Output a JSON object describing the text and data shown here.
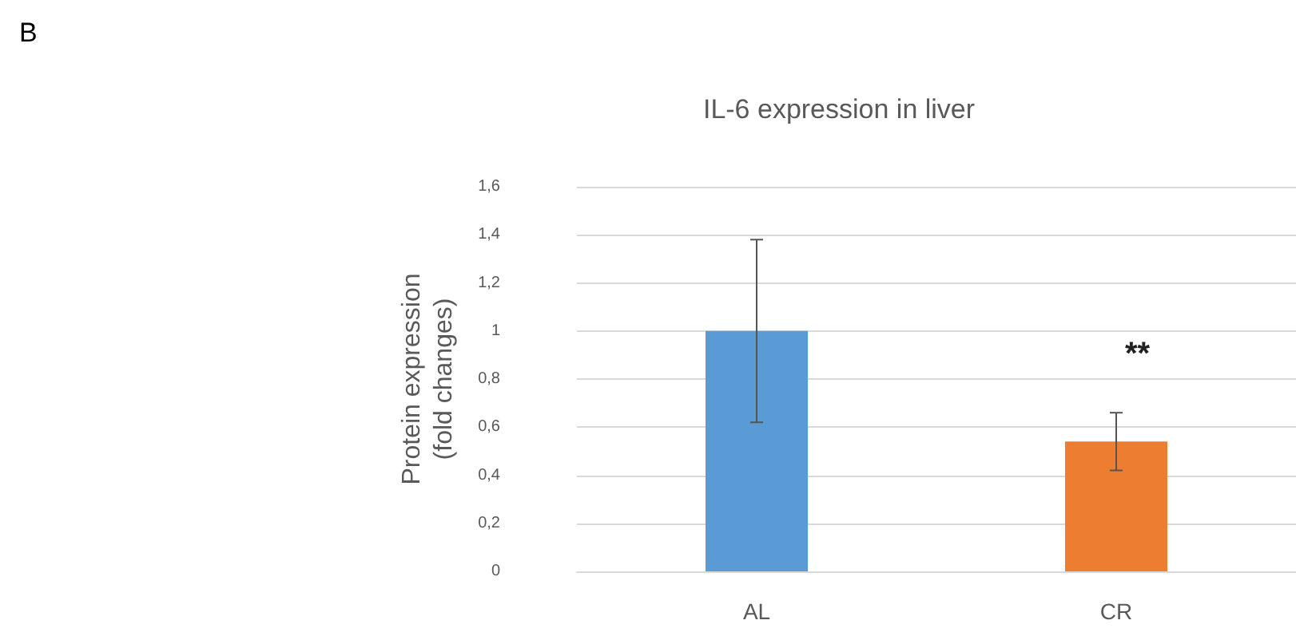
{
  "chart_data": {
    "type": "bar",
    "title": "IL-6 expression in liver",
    "ylabel": "Protein expression\n(fold changes)",
    "categories": [
      "AL",
      "CR"
    ],
    "values": [
      1.0,
      0.54
    ],
    "colors": [
      "#5b9bd5",
      "#ed7d31"
    ],
    "errors": [
      0.38,
      0.12
    ],
    "ylim": [
      0,
      1.6
    ],
    "yticks": [
      0,
      {
        "value": 0.2,
        "label": "0,2"
      },
      {
        "value": 0.4,
        "label": "0,4"
      },
      {
        "value": 0.6,
        "label": "0,6"
      },
      {
        "value": 0.8,
        "label": "0,8"
      },
      1,
      {
        "value": 1.2,
        "label": "1,2"
      },
      {
        "value": 1.4,
        "label": "1,4"
      },
      {
        "value": 1.6,
        "label": "1,6"
      }
    ],
    "grid": "y",
    "annotations": [
      "B",
      "**"
    ]
  }
}
